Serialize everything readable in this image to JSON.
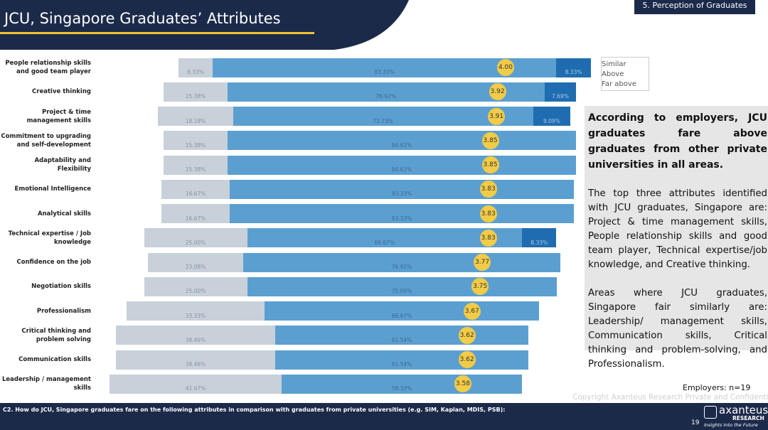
{
  "header": {
    "title": "JCU, Singapore Graduates’ Attributes",
    "section": "5. Perception of Graduates"
  },
  "chart_data": {
    "type": "stacked_bar",
    "categories": [
      "People relationship skills and good team player",
      "Creative thinking",
      "Project & time management skills",
      "Commitment to upgrading and self-development",
      "Adaptability and Flexibility",
      "Emotional Intelligence",
      "Analytical skills",
      "Technical expertise / Job knowledge",
      "Confidence on the job",
      "Negotiation skills",
      "Professionalism",
      "Critical thinking and problem solving",
      "Communication skills",
      "Leadership / management skills"
    ],
    "series": [
      {
        "name": "Similar",
        "color": "#c8d0da",
        "values": [
          8.33,
          15.38,
          18.18,
          15.38,
          15.38,
          16.67,
          16.67,
          25.0,
          23.08,
          25.0,
          33.33,
          38.46,
          38.46,
          41.67
        ],
        "value_labels": [
          "8.33%",
          "15.38%",
          "18.18%",
          "15.38%",
          "15.38%",
          "16.67%",
          "16.67%",
          "25.00%",
          "23.08%",
          "25.00%",
          "33.33%",
          "38.46%",
          "38.46%",
          "41.67%"
        ]
      },
      {
        "name": "Above",
        "color": "#5b9fd1",
        "values": [
          83.33,
          76.92,
          72.73,
          84.62,
          84.62,
          83.33,
          83.33,
          66.67,
          76.92,
          75.0,
          66.67,
          61.54,
          61.54,
          58.33
        ],
        "value_labels": [
          "83.33%",
          "76.92%",
          "72.73%",
          "84.62%",
          "84.62%",
          "83.33%",
          "83.33%",
          "66.67%",
          "76.92%",
          "75.00%",
          "66.67%",
          "61.54%",
          "61.54%",
          "58.33%"
        ]
      },
      {
        "name": "Far above",
        "color": "#1f6db0",
        "values": [
          8.33,
          7.69,
          9.09,
          null,
          null,
          null,
          null,
          8.33,
          null,
          null,
          null,
          null,
          null,
          null
        ],
        "value_labels": [
          "8.33%",
          "7.69%",
          "9.09%",
          null,
          null,
          null,
          null,
          "8.33%",
          null,
          null,
          null,
          null,
          null,
          null
        ]
      }
    ],
    "means": {
      "color": "#f2cb47",
      "values": [
        4.0,
        3.92,
        3.91,
        3.85,
        3.85,
        3.83,
        3.83,
        3.83,
        3.77,
        3.75,
        3.67,
        3.62,
        3.62,
        3.58
      ],
      "value_labels": [
        "4.00",
        "3.92",
        "3.91",
        "3.85",
        "3.85",
        "3.83",
        "3.83",
        "3.83",
        "3.77",
        "3.75",
        "3.67",
        "3.62",
        "3.62",
        "3.58"
      ]
    },
    "legend": "top-right"
  },
  "panel": {
    "heading": "According to employers, JCU graduates fare above graduates from other private universities in all areas.",
    "paragraphs": [
      "The top three attributes identified with JCU graduates, Singapore are: Project & time management skills, People relationship skills and good team player, Technical expertise/job knowledge, and Creative thinking.",
      "Areas where JCU graduates, Singapore fair similarly are: Leadership/ management skills, Communication skills, Critical thinking and problem-solving, and Professionalism."
    ]
  },
  "note": "Employers: n=19",
  "copyright": "Copyright Axanteus Research Private and Confidential",
  "footer": {
    "question": "C2. How do JCU, Singapore graduates fare on the following attributes in comparison with graduates from private universities (e.g. SIM, Kaplan, MDIS, PSB):",
    "page": "19",
    "logo": "axanteus",
    "logo_sub": "RESEARCH",
    "tagline": "Insights Into the Future"
  }
}
